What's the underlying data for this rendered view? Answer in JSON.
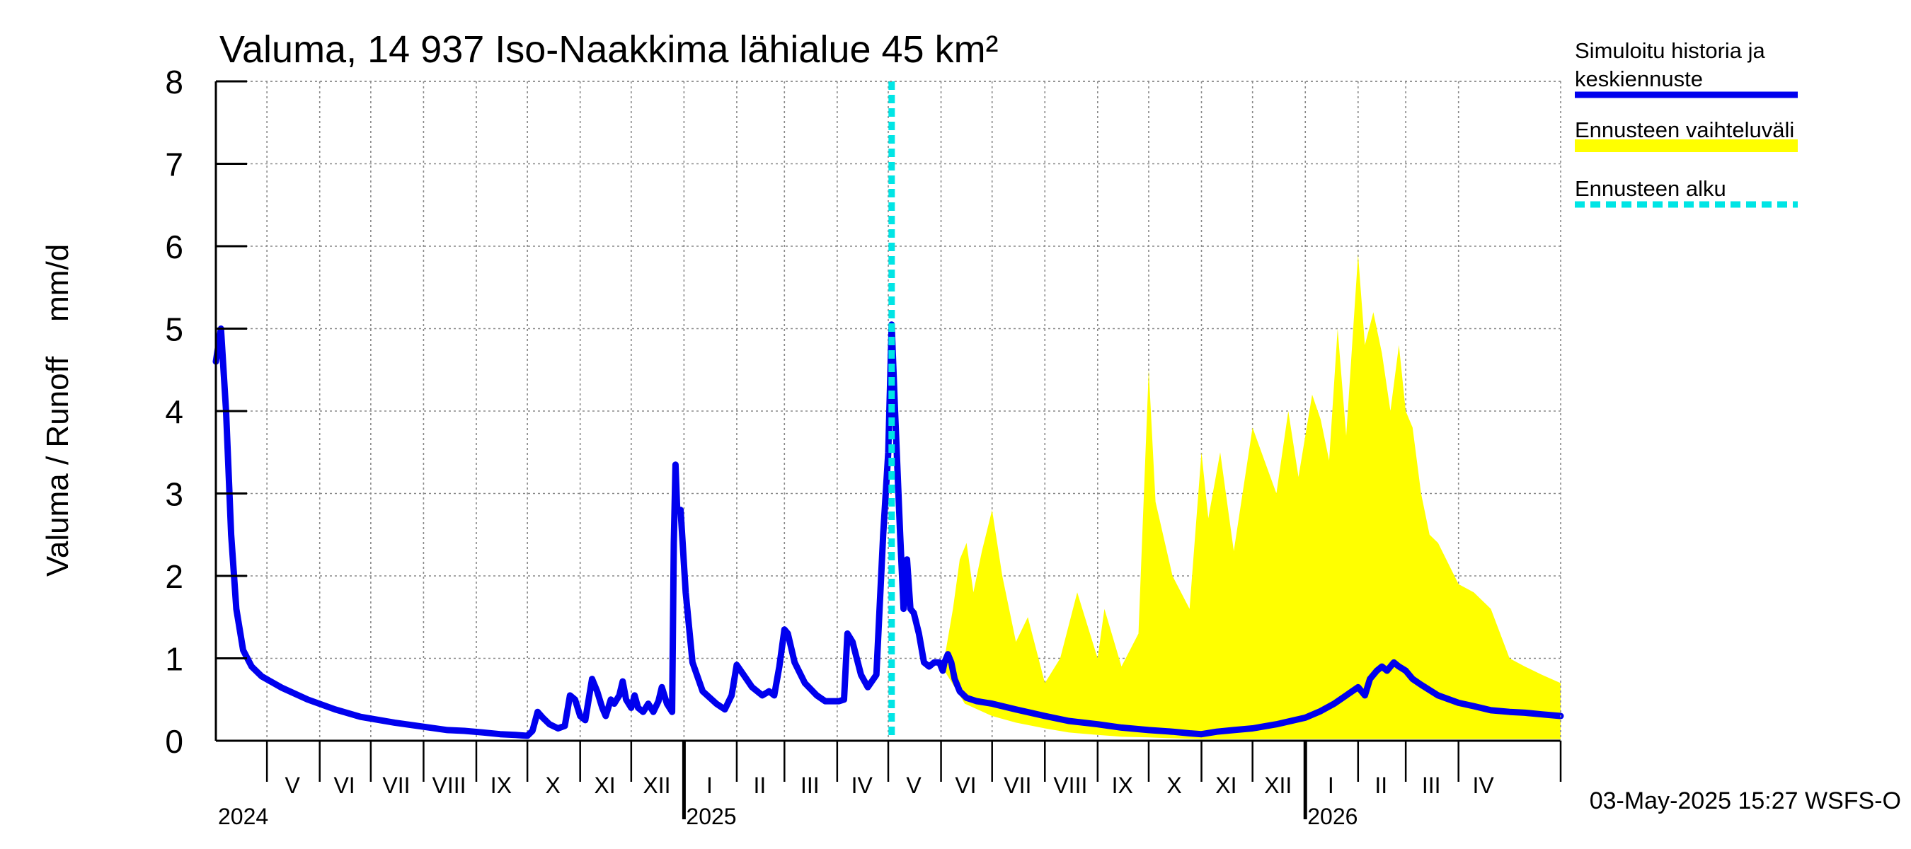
{
  "chart_data": {
    "type": "line",
    "title": "Valuma, 14 937 Iso-Naakkima lähialue 45 km²",
    "ylabel": "Valuma / Runoff    mm/d",
    "ylim": [
      0,
      8
    ],
    "yticks": [
      0,
      1,
      2,
      3,
      4,
      5,
      6,
      7,
      8
    ],
    "x_start": "2024-04-01",
    "x_end": "2026-05-31",
    "forecast_start": "2025-05-03",
    "months": [
      {
        "label": "V",
        "start": "2024-05-01",
        "end": "2024-05-31"
      },
      {
        "label": "VI",
        "start": "2024-06-01",
        "end": "2024-06-30"
      },
      {
        "label": "VII",
        "start": "2024-07-01",
        "end": "2024-07-31"
      },
      {
        "label": "VIII",
        "start": "2024-08-01",
        "end": "2024-08-31"
      },
      {
        "label": "IX",
        "start": "2024-09-01",
        "end": "2024-09-30"
      },
      {
        "label": "X",
        "start": "2024-10-01",
        "end": "2024-10-31"
      },
      {
        "label": "XI",
        "start": "2024-11-01",
        "end": "2024-11-30"
      },
      {
        "label": "XII",
        "start": "2024-12-01",
        "end": "2024-12-31"
      },
      {
        "label": "I",
        "start": "2025-01-01",
        "end": "2025-01-31"
      },
      {
        "label": "II",
        "start": "2025-02-01",
        "end": "2025-02-28"
      },
      {
        "label": "III",
        "start": "2025-03-01",
        "end": "2025-03-31"
      },
      {
        "label": "IV",
        "start": "2025-04-01",
        "end": "2025-04-30"
      },
      {
        "label": "V",
        "start": "2025-05-01",
        "end": "2025-05-31"
      },
      {
        "label": "VI",
        "start": "2025-06-01",
        "end": "2025-06-30"
      },
      {
        "label": "VII",
        "start": "2025-07-01",
        "end": "2025-07-31"
      },
      {
        "label": "VIII",
        "start": "2025-08-01",
        "end": "2025-08-31"
      },
      {
        "label": "IX",
        "start": "2025-09-01",
        "end": "2025-09-30"
      },
      {
        "label": "X",
        "start": "2025-10-01",
        "end": "2025-10-31"
      },
      {
        "label": "XI",
        "start": "2025-11-01",
        "end": "2025-11-30"
      },
      {
        "label": "XII",
        "start": "2025-12-01",
        "end": "2025-12-31"
      },
      {
        "label": "I",
        "start": "2026-01-01",
        "end": "2026-01-31"
      },
      {
        "label": "II",
        "start": "2026-02-01",
        "end": "2026-02-28"
      },
      {
        "label": "III",
        "start": "2026-03-01",
        "end": "2026-03-31"
      },
      {
        "label": "IV",
        "start": "2026-04-01",
        "end": "2026-04-30"
      }
    ],
    "years": [
      {
        "label": "2024",
        "date": "2024-04-01"
      },
      {
        "label": "2025",
        "date": "2025-01-01"
      },
      {
        "label": "2026",
        "date": "2026-01-01"
      }
    ],
    "legend": {
      "placement": "right",
      "entries": [
        {
          "label_lines": [
            "Simuloitu historia ja",
            "keskiennuste"
          ],
          "color": "#0000ee",
          "style": "solid"
        },
        {
          "label_lines": [
            "Ennusteen vaihteluväli"
          ],
          "color": "#ffff00",
          "style": "band"
        },
        {
          "label_lines": [
            "Ennusteen alku"
          ],
          "color": "#00e5e5",
          "style": "dashed"
        }
      ]
    },
    "series": [
      {
        "name": "Simuloitu historia ja keskiennuste",
        "color": "#0000ee",
        "points": [
          [
            "2024-04-01",
            4.6
          ],
          [
            "2024-04-04",
            5.0
          ],
          [
            "2024-04-07",
            4.0
          ],
          [
            "2024-04-10",
            2.5
          ],
          [
            "2024-04-13",
            1.6
          ],
          [
            "2024-04-17",
            1.1
          ],
          [
            "2024-04-22",
            0.9
          ],
          [
            "2024-04-28",
            0.78
          ],
          [
            "2024-05-10",
            0.64
          ],
          [
            "2024-05-25",
            0.5
          ],
          [
            "2024-06-10",
            0.38
          ],
          [
            "2024-06-25",
            0.29
          ],
          [
            "2024-07-15",
            0.22
          ],
          [
            "2024-08-01",
            0.17
          ],
          [
            "2024-08-15",
            0.13
          ],
          [
            "2024-08-25",
            0.12
          ],
          [
            "2024-09-05",
            0.1
          ],
          [
            "2024-09-15",
            0.08
          ],
          [
            "2024-09-24",
            0.07
          ],
          [
            "2024-10-01",
            0.06
          ],
          [
            "2024-10-04",
            0.12
          ],
          [
            "2024-10-07",
            0.35
          ],
          [
            "2024-10-10",
            0.28
          ],
          [
            "2024-10-14",
            0.2
          ],
          [
            "2024-10-19",
            0.15
          ],
          [
            "2024-10-23",
            0.18
          ],
          [
            "2024-10-26",
            0.55
          ],
          [
            "2024-10-29",
            0.5
          ],
          [
            "2024-11-01",
            0.3
          ],
          [
            "2024-11-04",
            0.25
          ],
          [
            "2024-11-08",
            0.75
          ],
          [
            "2024-11-11",
            0.6
          ],
          [
            "2024-11-14",
            0.4
          ],
          [
            "2024-11-16",
            0.3
          ],
          [
            "2024-11-19",
            0.5
          ],
          [
            "2024-11-21",
            0.45
          ],
          [
            "2024-11-24",
            0.55
          ],
          [
            "2024-11-26",
            0.72
          ],
          [
            "2024-11-28",
            0.5
          ],
          [
            "2024-12-01",
            0.4
          ],
          [
            "2024-12-03",
            0.55
          ],
          [
            "2024-12-05",
            0.4
          ],
          [
            "2024-12-08",
            0.35
          ],
          [
            "2024-12-11",
            0.45
          ],
          [
            "2024-12-14",
            0.35
          ],
          [
            "2024-12-17",
            0.48
          ],
          [
            "2024-12-19",
            0.65
          ],
          [
            "2024-12-22",
            0.45
          ],
          [
            "2024-12-25",
            0.35
          ],
          [
            "2024-12-26",
            2.4
          ],
          [
            "2024-12-27",
            3.35
          ],
          [
            "2024-12-28",
            2.8
          ],
          [
            "2024-12-30",
            2.8
          ],
          [
            "2025-01-02",
            1.8
          ],
          [
            "2025-01-06",
            0.95
          ],
          [
            "2025-01-12",
            0.6
          ],
          [
            "2025-01-20",
            0.45
          ],
          [
            "2025-01-25",
            0.38
          ],
          [
            "2025-01-29",
            0.55
          ],
          [
            "2025-02-01",
            0.92
          ],
          [
            "2025-02-05",
            0.8
          ],
          [
            "2025-02-10",
            0.65
          ],
          [
            "2025-02-16",
            0.55
          ],
          [
            "2025-02-20",
            0.6
          ],
          [
            "2025-02-23",
            0.55
          ],
          [
            "2025-02-26",
            0.9
          ],
          [
            "2025-03-01",
            1.35
          ],
          [
            "2025-03-03",
            1.3
          ],
          [
            "2025-03-07",
            0.95
          ],
          [
            "2025-03-13",
            0.7
          ],
          [
            "2025-03-20",
            0.55
          ],
          [
            "2025-03-25",
            0.48
          ],
          [
            "2025-04-02",
            0.48
          ],
          [
            "2025-04-05",
            0.5
          ],
          [
            "2025-04-07",
            1.3
          ],
          [
            "2025-04-10",
            1.2
          ],
          [
            "2025-04-15",
            0.8
          ],
          [
            "2025-04-19",
            0.65
          ],
          [
            "2025-04-24",
            0.8
          ],
          [
            "2025-04-28",
            2.5
          ],
          [
            "2025-05-01",
            3.5
          ],
          [
            "2025-05-03",
            5.05
          ],
          [
            "2025-05-05",
            4.0
          ],
          [
            "2025-05-08",
            2.5
          ],
          [
            "2025-05-10",
            1.6
          ],
          [
            "2025-05-12",
            2.2
          ],
          [
            "2025-05-14",
            1.6
          ],
          [
            "2025-05-16",
            1.55
          ],
          [
            "2025-05-19",
            1.3
          ],
          [
            "2025-05-22",
            0.95
          ],
          [
            "2025-05-25",
            0.9
          ],
          [
            "2025-05-28",
            0.95
          ],
          [
            "2025-05-31",
            0.95
          ],
          [
            "2025-06-02",
            0.85
          ],
          [
            "2025-06-03",
            0.95
          ],
          [
            "2025-06-05",
            1.05
          ],
          [
            "2025-06-07",
            0.95
          ],
          [
            "2025-06-09",
            0.75
          ],
          [
            "2025-06-12",
            0.6
          ],
          [
            "2025-06-16",
            0.52
          ],
          [
            "2025-06-22",
            0.48
          ],
          [
            "2025-07-01",
            0.45
          ],
          [
            "2025-07-15",
            0.38
          ],
          [
            "2025-08-01",
            0.3
          ],
          [
            "2025-08-15",
            0.24
          ],
          [
            "2025-09-01",
            0.2
          ],
          [
            "2025-09-15",
            0.16
          ],
          [
            "2025-10-01",
            0.13
          ],
          [
            "2025-10-15",
            0.11
          ],
          [
            "2025-10-25",
            0.09
          ],
          [
            "2025-11-01",
            0.08
          ],
          [
            "2025-11-10",
            0.11
          ],
          [
            "2025-11-20",
            0.13
          ],
          [
            "2025-12-01",
            0.15
          ],
          [
            "2025-12-15",
            0.2
          ],
          [
            "2026-01-01",
            0.28
          ],
          [
            "2026-01-10",
            0.36
          ],
          [
            "2026-01-18",
            0.45
          ],
          [
            "2026-01-25",
            0.55
          ],
          [
            "2026-02-01",
            0.65
          ],
          [
            "2026-02-05",
            0.55
          ],
          [
            "2026-02-08",
            0.75
          ],
          [
            "2026-02-12",
            0.85
          ],
          [
            "2026-02-15",
            0.9
          ],
          [
            "2026-02-18",
            0.85
          ],
          [
            "2026-02-22",
            0.95
          ],
          [
            "2026-02-25",
            0.9
          ],
          [
            "2026-03-01",
            0.85
          ],
          [
            "2026-03-05",
            0.75
          ],
          [
            "2026-03-10",
            0.68
          ],
          [
            "2026-03-20",
            0.55
          ],
          [
            "2026-04-01",
            0.46
          ],
          [
            "2026-04-10",
            0.42
          ],
          [
            "2026-04-20",
            0.37
          ],
          [
            "2026-05-01",
            0.35
          ],
          [
            "2026-05-10",
            0.34
          ],
          [
            "2026-05-20",
            0.32
          ],
          [
            "2026-05-31",
            0.3
          ]
        ]
      },
      {
        "name": "Ennusteen vaihteluväli",
        "color": "#ffff00",
        "upper_points": [
          [
            "2025-06-03",
            1.0
          ],
          [
            "2025-06-08",
            1.6
          ],
          [
            "2025-06-12",
            2.2
          ],
          [
            "2025-06-16",
            2.4
          ],
          [
            "2025-06-20",
            1.8
          ],
          [
            "2025-06-25",
            2.3
          ],
          [
            "2025-07-01",
            2.8
          ],
          [
            "2025-07-07",
            2.0
          ],
          [
            "2025-07-15",
            1.2
          ],
          [
            "2025-07-22",
            1.5
          ],
          [
            "2025-08-01",
            0.7
          ],
          [
            "2025-08-10",
            1.0
          ],
          [
            "2025-08-20",
            1.8
          ],
          [
            "2025-09-01",
            1.0
          ],
          [
            "2025-09-05",
            1.6
          ],
          [
            "2025-09-15",
            0.9
          ],
          [
            "2025-09-25",
            1.3
          ],
          [
            "2025-10-01",
            4.5
          ],
          [
            "2025-10-05",
            2.9
          ],
          [
            "2025-10-15",
            2.0
          ],
          [
            "2025-10-25",
            1.6
          ],
          [
            "2025-11-01",
            3.5
          ],
          [
            "2025-11-05",
            2.7
          ],
          [
            "2025-11-12",
            3.5
          ],
          [
            "2025-11-20",
            2.3
          ],
          [
            "2025-12-01",
            3.8
          ],
          [
            "2025-12-08",
            3.4
          ],
          [
            "2025-12-15",
            3.0
          ],
          [
            "2025-12-22",
            4.0
          ],
          [
            "2025-12-28",
            3.2
          ],
          [
            "2026-01-05",
            4.2
          ],
          [
            "2026-01-10",
            3.9
          ],
          [
            "2026-01-15",
            3.4
          ],
          [
            "2026-01-20",
            5.0
          ],
          [
            "2026-01-25",
            3.7
          ],
          [
            "2026-02-01",
            5.9
          ],
          [
            "2026-02-05",
            4.8
          ],
          [
            "2026-02-10",
            5.2
          ],
          [
            "2026-02-15",
            4.7
          ],
          [
            "2026-02-20",
            4.0
          ],
          [
            "2026-02-25",
            4.8
          ],
          [
            "2026-03-01",
            4.0
          ],
          [
            "2026-03-05",
            3.8
          ],
          [
            "2026-03-10",
            3.0
          ],
          [
            "2026-03-15",
            2.5
          ],
          [
            "2026-03-20",
            2.4
          ],
          [
            "2026-04-01",
            1.9
          ],
          [
            "2026-04-10",
            1.8
          ],
          [
            "2026-04-20",
            1.6
          ],
          [
            "2026-05-01",
            1.0
          ],
          [
            "2026-05-10",
            0.9
          ],
          [
            "2026-05-20",
            0.8
          ],
          [
            "2026-05-31",
            0.7
          ]
        ],
        "lower_points": [
          [
            "2025-06-03",
            0.85
          ],
          [
            "2025-06-15",
            0.45
          ],
          [
            "2025-07-01",
            0.3
          ],
          [
            "2025-07-15",
            0.22
          ],
          [
            "2025-08-01",
            0.15
          ],
          [
            "2025-08-15",
            0.1
          ],
          [
            "2025-09-01",
            0.07
          ],
          [
            "2025-09-15",
            0.05
          ],
          [
            "2025-10-01",
            0.04
          ],
          [
            "2025-10-15",
            0.03
          ],
          [
            "2025-11-01",
            0.02
          ],
          [
            "2025-11-15",
            0.02
          ],
          [
            "2025-12-01",
            0.02
          ],
          [
            "2025-12-15",
            0.02
          ],
          [
            "2026-01-01",
            0.02
          ],
          [
            "2026-01-15",
            0.02
          ],
          [
            "2026-02-01",
            0.02
          ],
          [
            "2026-02-15",
            0.02
          ],
          [
            "2026-03-01",
            0.02
          ],
          [
            "2026-03-15",
            0.02
          ],
          [
            "2026-04-01",
            0.02
          ],
          [
            "2026-04-15",
            0.02
          ],
          [
            "2026-05-01",
            0.02
          ],
          [
            "2026-05-15",
            0.02
          ],
          [
            "2026-05-31",
            0.02
          ]
        ]
      }
    ]
  },
  "footer": {
    "timestamp": "03-May-2025 15:27 WSFS-O"
  }
}
